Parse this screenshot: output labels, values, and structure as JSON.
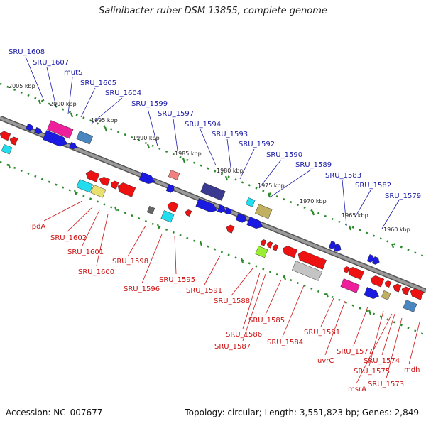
{
  "title": "Salinibacter ruber DSM 13855, complete genome",
  "footer": {
    "accession": "Accession: NC_007677",
    "summary": "Topology: circular; Length: 3,551,823 bp; Genes: 2,849"
  },
  "kbp_labels": [
    "2005 kbp",
    "2000 kbp",
    "1995 kbp",
    "1990 kbp",
    "1985 kbp",
    "1980 kbp",
    "1975 kbp",
    "1970 kbp",
    "1965 kbp",
    "1960 kbp"
  ],
  "top_labels": [
    "SRU_1608",
    "SRU_1607",
    "mutS",
    "SRU_1605",
    "SRU_1604",
    "SRU_1599",
    "SRU_1597",
    "SRU_1594",
    "SRU_1593",
    "SRU_1592",
    "SRU_1590",
    "SRU_1589",
    "SRU_1583",
    "SRU_1582",
    "SRU_1579"
  ],
  "bottom_labels": [
    "lpdA",
    "SRU_1602",
    "SRU_1601",
    "SRU_1600",
    "SRU_1598",
    "SRU_1596",
    "SRU_1595",
    "SRU_1591",
    "SRU_1588",
    "SRU_1586",
    "SRU_1587",
    "SRU_1585",
    "SRU_1584",
    "SRU_1581",
    "uvrC",
    "SRU_1577",
    "SRU_1575",
    "msrA",
    "SRU_1574",
    "SRU_1573",
    "mdh"
  ],
  "colors": {
    "backbone": "#808080",
    "label_forward": "#1a1aa6",
    "label_reverse": "#cc1111",
    "tick_dots": "#2a8a2a"
  }
}
